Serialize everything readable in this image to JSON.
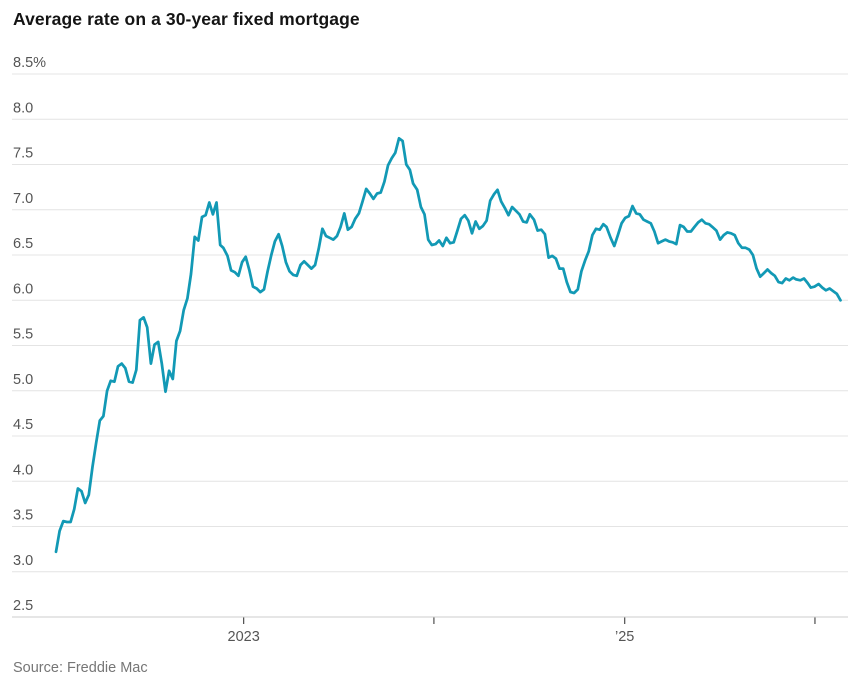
{
  "header": {
    "title": "Average rate on a 30-year fixed mortgage"
  },
  "footer": {
    "source": "Source: Freddie Mac"
  },
  "colors": {
    "background": "#ffffff",
    "line": "#1299b5",
    "grid": "#e4e4e4",
    "axis_bottom": "#cccccc",
    "tick": "#4d4d4d",
    "title_text": "#141414",
    "axis_label_text": "#555555",
    "source_text": "#767676"
  },
  "chart_data": {
    "type": "line",
    "title": "Average rate on a 30-year fixed mortgage",
    "xlabel": "",
    "ylabel": "",
    "unit": "%",
    "grid": true,
    "legend": "none",
    "y_domain": [
      2.5,
      8.5
    ],
    "x_domain": [
      "2022-01-06",
      "2026-02-19"
    ],
    "y_ticks": [
      {
        "label": "8.5%",
        "value": 8.5
      },
      {
        "label": "8.0",
        "value": 8.0
      },
      {
        "label": "7.5",
        "value": 7.5
      },
      {
        "label": "7.0",
        "value": 7.0
      },
      {
        "label": "6.5",
        "value": 6.5
      },
      {
        "label": "6.0",
        "value": 6.0
      },
      {
        "label": "5.5",
        "value": 5.5
      },
      {
        "label": "5.0",
        "value": 5.0
      },
      {
        "label": "4.5",
        "value": 4.5
      },
      {
        "label": "4.0",
        "value": 4.0
      },
      {
        "label": "3.5",
        "value": 3.5
      },
      {
        "label": "3.0",
        "value": 3.0
      },
      {
        "label": "2.5",
        "value": 2.5
      }
    ],
    "x_ticks": [
      {
        "label": "2023",
        "date": "2023-01-01"
      },
      {
        "label": "",
        "date": "2024-01-01"
      },
      {
        "label": "’25",
        "date": "2025-01-01"
      },
      {
        "label": "",
        "date": "2026-01-01"
      }
    ],
    "series": [
      {
        "name": "30-year fixed mortgage average rate",
        "points": [
          [
            "2022-01-06",
            3.22
          ],
          [
            "2022-01-13",
            3.45
          ],
          [
            "2022-01-20",
            3.56
          ],
          [
            "2022-01-27",
            3.55
          ],
          [
            "2022-02-03",
            3.55
          ],
          [
            "2022-02-10",
            3.69
          ],
          [
            "2022-02-17",
            3.92
          ],
          [
            "2022-02-24",
            3.89
          ],
          [
            "2022-03-03",
            3.76
          ],
          [
            "2022-03-10",
            3.85
          ],
          [
            "2022-03-17",
            4.16
          ],
          [
            "2022-03-24",
            4.42
          ],
          [
            "2022-03-31",
            4.67
          ],
          [
            "2022-04-07",
            4.72
          ],
          [
            "2022-04-14",
            5.0
          ],
          [
            "2022-04-21",
            5.11
          ],
          [
            "2022-04-28",
            5.1
          ],
          [
            "2022-05-05",
            5.27
          ],
          [
            "2022-05-12",
            5.3
          ],
          [
            "2022-05-19",
            5.25
          ],
          [
            "2022-05-26",
            5.1
          ],
          [
            "2022-06-02",
            5.09
          ],
          [
            "2022-06-09",
            5.23
          ],
          [
            "2022-06-16",
            5.78
          ],
          [
            "2022-06-23",
            5.81
          ],
          [
            "2022-06-30",
            5.7
          ],
          [
            "2022-07-07",
            5.3
          ],
          [
            "2022-07-14",
            5.51
          ],
          [
            "2022-07-21",
            5.54
          ],
          [
            "2022-07-28",
            5.3
          ],
          [
            "2022-08-04",
            4.99
          ],
          [
            "2022-08-11",
            5.22
          ],
          [
            "2022-08-18",
            5.13
          ],
          [
            "2022-08-25",
            5.55
          ],
          [
            "2022-09-01",
            5.66
          ],
          [
            "2022-09-08",
            5.89
          ],
          [
            "2022-09-15",
            6.02
          ],
          [
            "2022-09-22",
            6.29
          ],
          [
            "2022-09-29",
            6.7
          ],
          [
            "2022-10-06",
            6.66
          ],
          [
            "2022-10-13",
            6.92
          ],
          [
            "2022-10-20",
            6.94
          ],
          [
            "2022-10-27",
            7.08
          ],
          [
            "2022-11-03",
            6.95
          ],
          [
            "2022-11-10",
            7.08
          ],
          [
            "2022-11-17",
            6.61
          ],
          [
            "2022-11-23",
            6.58
          ],
          [
            "2022-12-01",
            6.49
          ],
          [
            "2022-12-08",
            6.33
          ],
          [
            "2022-12-15",
            6.31
          ],
          [
            "2022-12-22",
            6.27
          ],
          [
            "2022-12-29",
            6.42
          ],
          [
            "2023-01-05",
            6.48
          ],
          [
            "2023-01-12",
            6.33
          ],
          [
            "2023-01-19",
            6.15
          ],
          [
            "2023-01-26",
            6.13
          ],
          [
            "2023-02-02",
            6.09
          ],
          [
            "2023-02-09",
            6.12
          ],
          [
            "2023-02-16",
            6.32
          ],
          [
            "2023-02-23",
            6.5
          ],
          [
            "2023-03-02",
            6.65
          ],
          [
            "2023-03-09",
            6.73
          ],
          [
            "2023-03-16",
            6.6
          ],
          [
            "2023-03-23",
            6.42
          ],
          [
            "2023-03-30",
            6.32
          ],
          [
            "2023-04-06",
            6.28
          ],
          [
            "2023-04-13",
            6.27
          ],
          [
            "2023-04-20",
            6.39
          ],
          [
            "2023-04-27",
            6.43
          ],
          [
            "2023-05-04",
            6.39
          ],
          [
            "2023-05-11",
            6.35
          ],
          [
            "2023-05-18",
            6.39
          ],
          [
            "2023-05-25",
            6.57
          ],
          [
            "2023-06-01",
            6.79
          ],
          [
            "2023-06-08",
            6.71
          ],
          [
            "2023-06-15",
            6.69
          ],
          [
            "2023-06-22",
            6.67
          ],
          [
            "2023-06-29",
            6.71
          ],
          [
            "2023-07-06",
            6.81
          ],
          [
            "2023-07-13",
            6.96
          ],
          [
            "2023-07-20",
            6.78
          ],
          [
            "2023-07-27",
            6.81
          ],
          [
            "2023-08-03",
            6.9
          ],
          [
            "2023-08-10",
            6.96
          ],
          [
            "2023-08-17",
            7.09
          ],
          [
            "2023-08-24",
            7.23
          ],
          [
            "2023-08-31",
            7.18
          ],
          [
            "2023-09-07",
            7.12
          ],
          [
            "2023-09-14",
            7.18
          ],
          [
            "2023-09-21",
            7.19
          ],
          [
            "2023-09-28",
            7.31
          ],
          [
            "2023-10-05",
            7.49
          ],
          [
            "2023-10-12",
            7.57
          ],
          [
            "2023-10-19",
            7.63
          ],
          [
            "2023-10-26",
            7.79
          ],
          [
            "2023-11-02",
            7.76
          ],
          [
            "2023-11-09",
            7.5
          ],
          [
            "2023-11-16",
            7.44
          ],
          [
            "2023-11-22",
            7.29
          ],
          [
            "2023-11-30",
            7.22
          ],
          [
            "2023-12-07",
            7.03
          ],
          [
            "2023-12-14",
            6.95
          ],
          [
            "2023-12-21",
            6.67
          ],
          [
            "2023-12-28",
            6.61
          ],
          [
            "2024-01-04",
            6.62
          ],
          [
            "2024-01-11",
            6.66
          ],
          [
            "2024-01-18",
            6.6
          ],
          [
            "2024-01-25",
            6.69
          ],
          [
            "2024-02-01",
            6.63
          ],
          [
            "2024-02-08",
            6.64
          ],
          [
            "2024-02-15",
            6.77
          ],
          [
            "2024-02-22",
            6.9
          ],
          [
            "2024-02-29",
            6.94
          ],
          [
            "2024-03-07",
            6.88
          ],
          [
            "2024-03-14",
            6.74
          ],
          [
            "2024-03-21",
            6.87
          ],
          [
            "2024-03-28",
            6.79
          ],
          [
            "2024-04-04",
            6.82
          ],
          [
            "2024-04-11",
            6.88
          ],
          [
            "2024-04-18",
            7.1
          ],
          [
            "2024-04-25",
            7.17
          ],
          [
            "2024-05-02",
            7.22
          ],
          [
            "2024-05-09",
            7.09
          ],
          [
            "2024-05-16",
            7.02
          ],
          [
            "2024-05-23",
            6.94
          ],
          [
            "2024-05-30",
            7.03
          ],
          [
            "2024-06-06",
            6.99
          ],
          [
            "2024-06-13",
            6.95
          ],
          [
            "2024-06-20",
            6.87
          ],
          [
            "2024-06-27",
            6.86
          ],
          [
            "2024-07-03",
            6.95
          ],
          [
            "2024-07-11",
            6.89
          ],
          [
            "2024-07-18",
            6.77
          ],
          [
            "2024-07-25",
            6.78
          ],
          [
            "2024-08-01",
            6.73
          ],
          [
            "2024-08-08",
            6.47
          ],
          [
            "2024-08-15",
            6.49
          ],
          [
            "2024-08-22",
            6.46
          ],
          [
            "2024-08-29",
            6.35
          ],
          [
            "2024-09-05",
            6.35
          ],
          [
            "2024-09-12",
            6.2
          ],
          [
            "2024-09-19",
            6.09
          ],
          [
            "2024-09-26",
            6.08
          ],
          [
            "2024-10-03",
            6.12
          ],
          [
            "2024-10-10",
            6.32
          ],
          [
            "2024-10-17",
            6.44
          ],
          [
            "2024-10-24",
            6.54
          ],
          [
            "2024-10-31",
            6.72
          ],
          [
            "2024-11-07",
            6.79
          ],
          [
            "2024-11-14",
            6.78
          ],
          [
            "2024-11-21",
            6.84
          ],
          [
            "2024-11-27",
            6.81
          ],
          [
            "2024-12-05",
            6.69
          ],
          [
            "2024-12-12",
            6.6
          ],
          [
            "2024-12-19",
            6.72
          ],
          [
            "2024-12-26",
            6.85
          ],
          [
            "2025-01-02",
            6.91
          ],
          [
            "2025-01-09",
            6.93
          ],
          [
            "2025-01-16",
            7.04
          ],
          [
            "2025-01-23",
            6.96
          ],
          [
            "2025-01-30",
            6.95
          ],
          [
            "2025-02-06",
            6.89
          ],
          [
            "2025-02-13",
            6.87
          ],
          [
            "2025-02-20",
            6.85
          ],
          [
            "2025-02-27",
            6.76
          ],
          [
            "2025-03-06",
            6.63
          ],
          [
            "2025-03-13",
            6.65
          ],
          [
            "2025-03-20",
            6.67
          ],
          [
            "2025-03-27",
            6.65
          ],
          [
            "2025-04-03",
            6.64
          ],
          [
            "2025-04-10",
            6.62
          ],
          [
            "2025-04-17",
            6.83
          ],
          [
            "2025-04-24",
            6.81
          ],
          [
            "2025-05-01",
            6.76
          ],
          [
            "2025-05-08",
            6.76
          ],
          [
            "2025-05-15",
            6.81
          ],
          [
            "2025-05-22",
            6.86
          ],
          [
            "2025-05-29",
            6.89
          ],
          [
            "2025-06-05",
            6.85
          ],
          [
            "2025-06-12",
            6.84
          ],
          [
            "2025-06-18",
            6.81
          ],
          [
            "2025-06-26",
            6.77
          ],
          [
            "2025-07-03",
            6.67
          ],
          [
            "2025-07-10",
            6.72
          ],
          [
            "2025-07-17",
            6.75
          ],
          [
            "2025-07-24",
            6.74
          ],
          [
            "2025-07-31",
            6.72
          ],
          [
            "2025-08-07",
            6.63
          ],
          [
            "2025-08-14",
            6.58
          ],
          [
            "2025-08-21",
            6.58
          ],
          [
            "2025-08-28",
            6.56
          ],
          [
            "2025-09-04",
            6.5
          ],
          [
            "2025-09-11",
            6.35
          ],
          [
            "2025-09-18",
            6.26
          ],
          [
            "2025-09-25",
            6.3
          ],
          [
            "2025-10-02",
            6.34
          ],
          [
            "2025-10-09",
            6.3
          ],
          [
            "2025-10-16",
            6.27
          ],
          [
            "2025-10-23",
            6.2
          ],
          [
            "2025-10-30",
            6.19
          ],
          [
            "2025-11-06",
            6.24
          ],
          [
            "2025-11-13",
            6.22
          ],
          [
            "2025-11-20",
            6.25
          ],
          [
            "2025-11-26",
            6.23
          ],
          [
            "2025-12-04",
            6.22
          ],
          [
            "2025-12-11",
            6.24
          ],
          [
            "2025-12-18",
            6.19
          ],
          [
            "2025-12-24",
            6.14
          ],
          [
            "2025-12-31",
            6.15
          ],
          [
            "2026-01-08",
            6.18
          ],
          [
            "2026-01-15",
            6.14
          ],
          [
            "2026-01-22",
            6.11
          ],
          [
            "2026-01-29",
            6.13
          ],
          [
            "2026-02-05",
            6.1
          ],
          [
            "2026-02-12",
            6.07
          ],
          [
            "2026-02-19",
            6.0
          ]
        ]
      }
    ]
  }
}
